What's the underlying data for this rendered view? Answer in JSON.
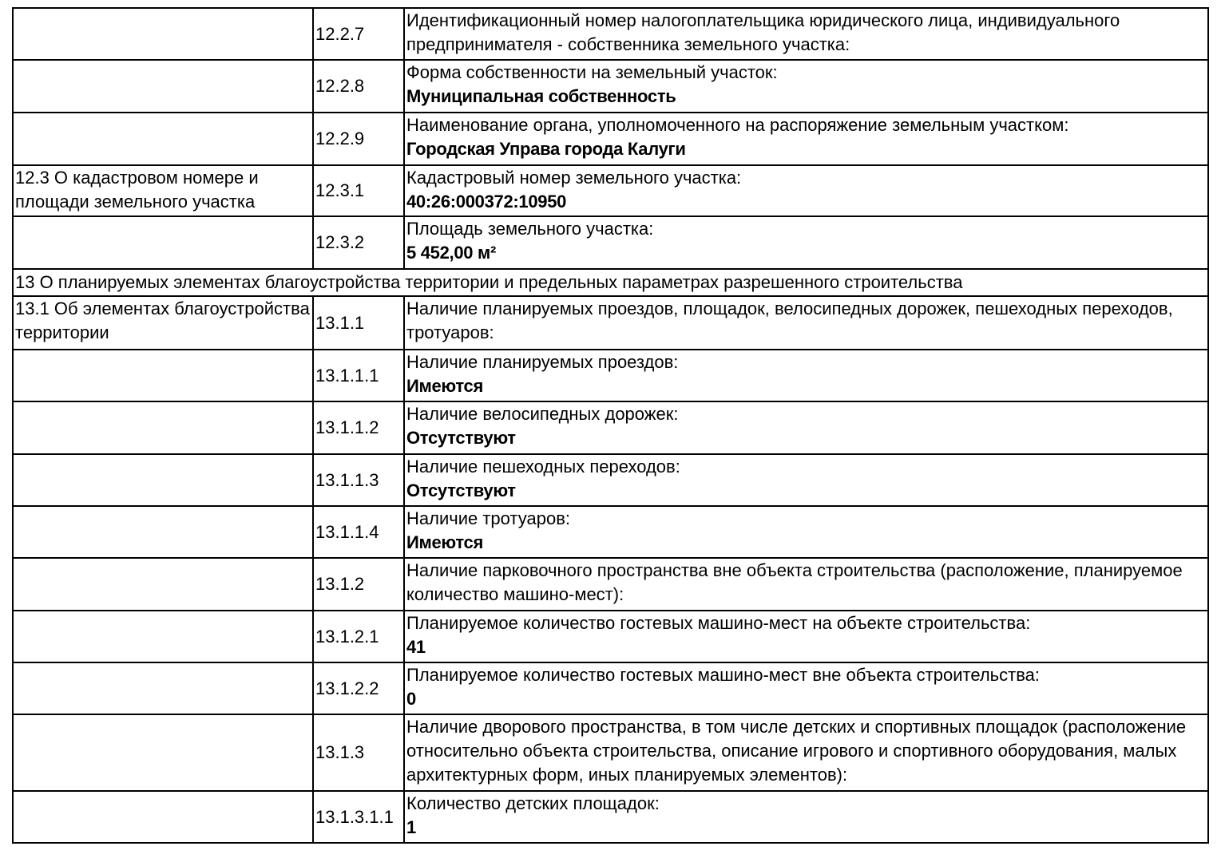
{
  "rows": [
    {
      "section": "",
      "code": "12.2.7",
      "label": "Идентификационный номер налогоплательщика юридического лица, индивидуального предпринимателя - собственника земельного участка:",
      "value": ""
    },
    {
      "section": "",
      "code": "12.2.8",
      "label": "Форма собственности на земельный участок:",
      "value": "Муниципальная собственность"
    },
    {
      "section": "",
      "code": "12.2.9",
      "label": "Наименование органа, уполномоченного на распоряжение земельным участком:",
      "value": "Городская Управа города Калуги"
    },
    {
      "section": "12.3 О кадастровом номере и площади земельного участка",
      "code": "12.3.1",
      "label": "Кадастровый номер земельного участка:",
      "value": "40:26:000372:10950"
    },
    {
      "section": "",
      "code": "12.3.2",
      "label": "Площадь земельного участка:",
      "value": "5 452,00 м²"
    },
    {
      "header": "13 О планируемых элементах благоустройства территории и предельных параметрах разрешенного строительства"
    },
    {
      "section": "13.1 Об элементах благоустройства территории",
      "code": "13.1.1",
      "label": "Наличие планируемых проездов, площадок, велосипедных дорожек, пешеходных переходов, тротуаров:",
      "value": ""
    },
    {
      "section": "",
      "code": "13.1.1.1",
      "label": "Наличие планируемых проездов:",
      "value": "Имеются"
    },
    {
      "section": "",
      "code": "13.1.1.2",
      "label": "Наличие велосипедных дорожек:",
      "value": "Отсутствуют"
    },
    {
      "section": "",
      "code": "13.1.1.3",
      "label": "Наличие пешеходных переходов:",
      "value": "Отсутствуют"
    },
    {
      "section": "",
      "code": "13.1.1.4",
      "label": "Наличие тротуаров:",
      "value": "Имеются"
    },
    {
      "section": "",
      "code": "13.1.2",
      "label": "Наличие парковочного пространства вне объекта строительства (расположение, планируемое количество машино-мест):",
      "value": ""
    },
    {
      "section": "",
      "code": "13.1.2.1",
      "label": "Планируемое количество гостевых машино-мест на объекте строительства:",
      "value": "41"
    },
    {
      "section": "",
      "code": "13.1.2.2",
      "label": "Планируемое количество гостевых машино-мест вне объекта строительства:",
      "value": "0"
    },
    {
      "section": "",
      "code": "13.1.3",
      "label": "Наличие дворового пространства, в том числе детских и спортивных площадок (расположение относительно объекта строительства, описание игрового и спортивного оборудования, малых архитектурных форм, иных планируемых элементов):",
      "value": ""
    },
    {
      "section": "",
      "code": "13.1.3.1.1",
      "label": "Количество детских площадок:",
      "value": "1"
    }
  ]
}
